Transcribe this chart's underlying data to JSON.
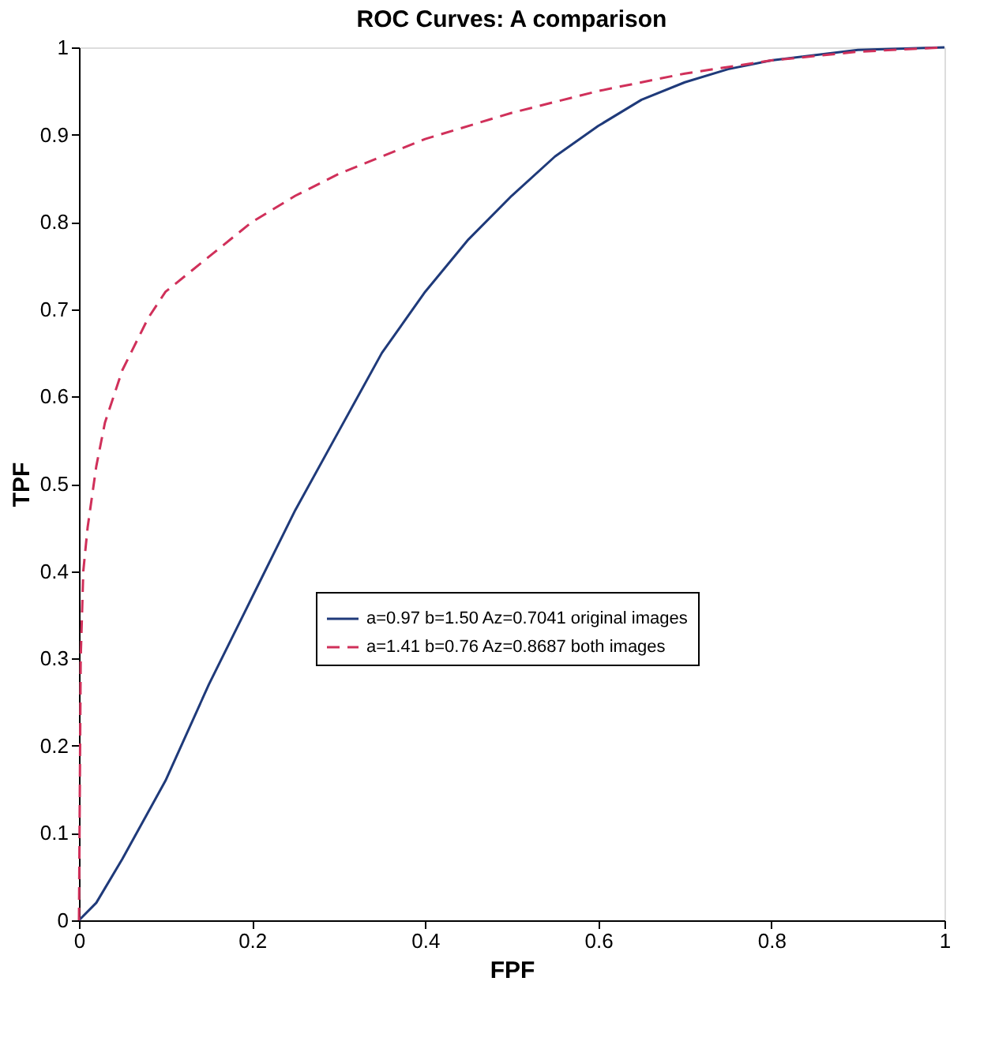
{
  "chart_data": {
    "type": "line",
    "title": "ROC Curves: A comparison",
    "xlabel": "FPF",
    "ylabel": "TPF",
    "xlim": [
      0,
      1
    ],
    "ylim": [
      0,
      1
    ],
    "xticks": [
      0,
      0.2,
      0.4,
      0.6,
      0.8,
      1
    ],
    "yticks": [
      0,
      0.1,
      0.2,
      0.3,
      0.4,
      0.5,
      0.6,
      0.7,
      0.8,
      0.9,
      1
    ],
    "grid": false,
    "legend": "right",
    "marker": "none",
    "series": [
      {
        "name": "a=0.97 b=1.50 Az=0.7041 original images",
        "color": "#1f3a7a",
        "line_style": "solid",
        "x": [
          0,
          0.02,
          0.05,
          0.1,
          0.15,
          0.2,
          0.25,
          0.3,
          0.35,
          0.4,
          0.45,
          0.5,
          0.55,
          0.6,
          0.65,
          0.7,
          0.75,
          0.8,
          0.9,
          1
        ],
        "values": [
          0,
          0.02,
          0.07,
          0.16,
          0.27,
          0.37,
          0.47,
          0.56,
          0.65,
          0.72,
          0.78,
          0.83,
          0.875,
          0.91,
          0.94,
          0.96,
          0.975,
          0.985,
          0.997,
          1
        ]
      },
      {
        "name": "a=1.41 b=0.76 Az=0.8687 both images",
        "color": "#d0305a",
        "line_style": "dashed",
        "x": [
          0,
          0.002,
          0.005,
          0.01,
          0.02,
          0.03,
          0.05,
          0.08,
          0.1,
          0.15,
          0.2,
          0.25,
          0.3,
          0.4,
          0.5,
          0.6,
          0.7,
          0.8,
          0.9,
          1
        ],
        "values": [
          0,
          0.3,
          0.4,
          0.45,
          0.52,
          0.57,
          0.63,
          0.69,
          0.72,
          0.76,
          0.8,
          0.83,
          0.855,
          0.895,
          0.925,
          0.95,
          0.97,
          0.985,
          0.995,
          1
        ]
      }
    ]
  }
}
